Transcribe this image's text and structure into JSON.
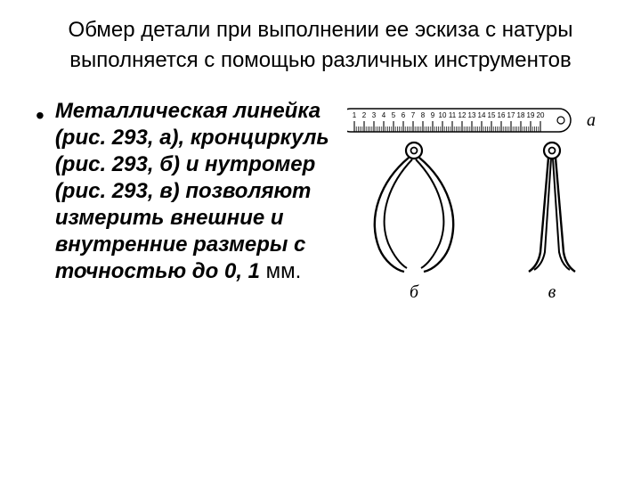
{
  "title": "Обмер детали при выполнении ее эскиза с натуры",
  "subtitle": "выполняется с помощью различных инструментов",
  "bullet": "•",
  "body_main": "Металлическая линейка (рис. 293, а), кронциркуль (рис. 293, б) и нутромер (рис. 293, в) позволяют измерить внешние и внутренние размеры с точностью до 0, 1 ",
  "body_tail": "мм.",
  "labels": {
    "a": "а",
    "b": "б",
    "v": "в"
  },
  "ruler_numbers": [
    "1",
    "2",
    "3",
    "4",
    "5",
    "6",
    "7",
    "8",
    "9",
    "10",
    "11",
    "12",
    "13",
    "14",
    "15",
    "16",
    "17",
    "18",
    "19",
    "20"
  ],
  "colors": {
    "bg": "#ffffff",
    "text": "#000000",
    "stroke": "#000000"
  }
}
